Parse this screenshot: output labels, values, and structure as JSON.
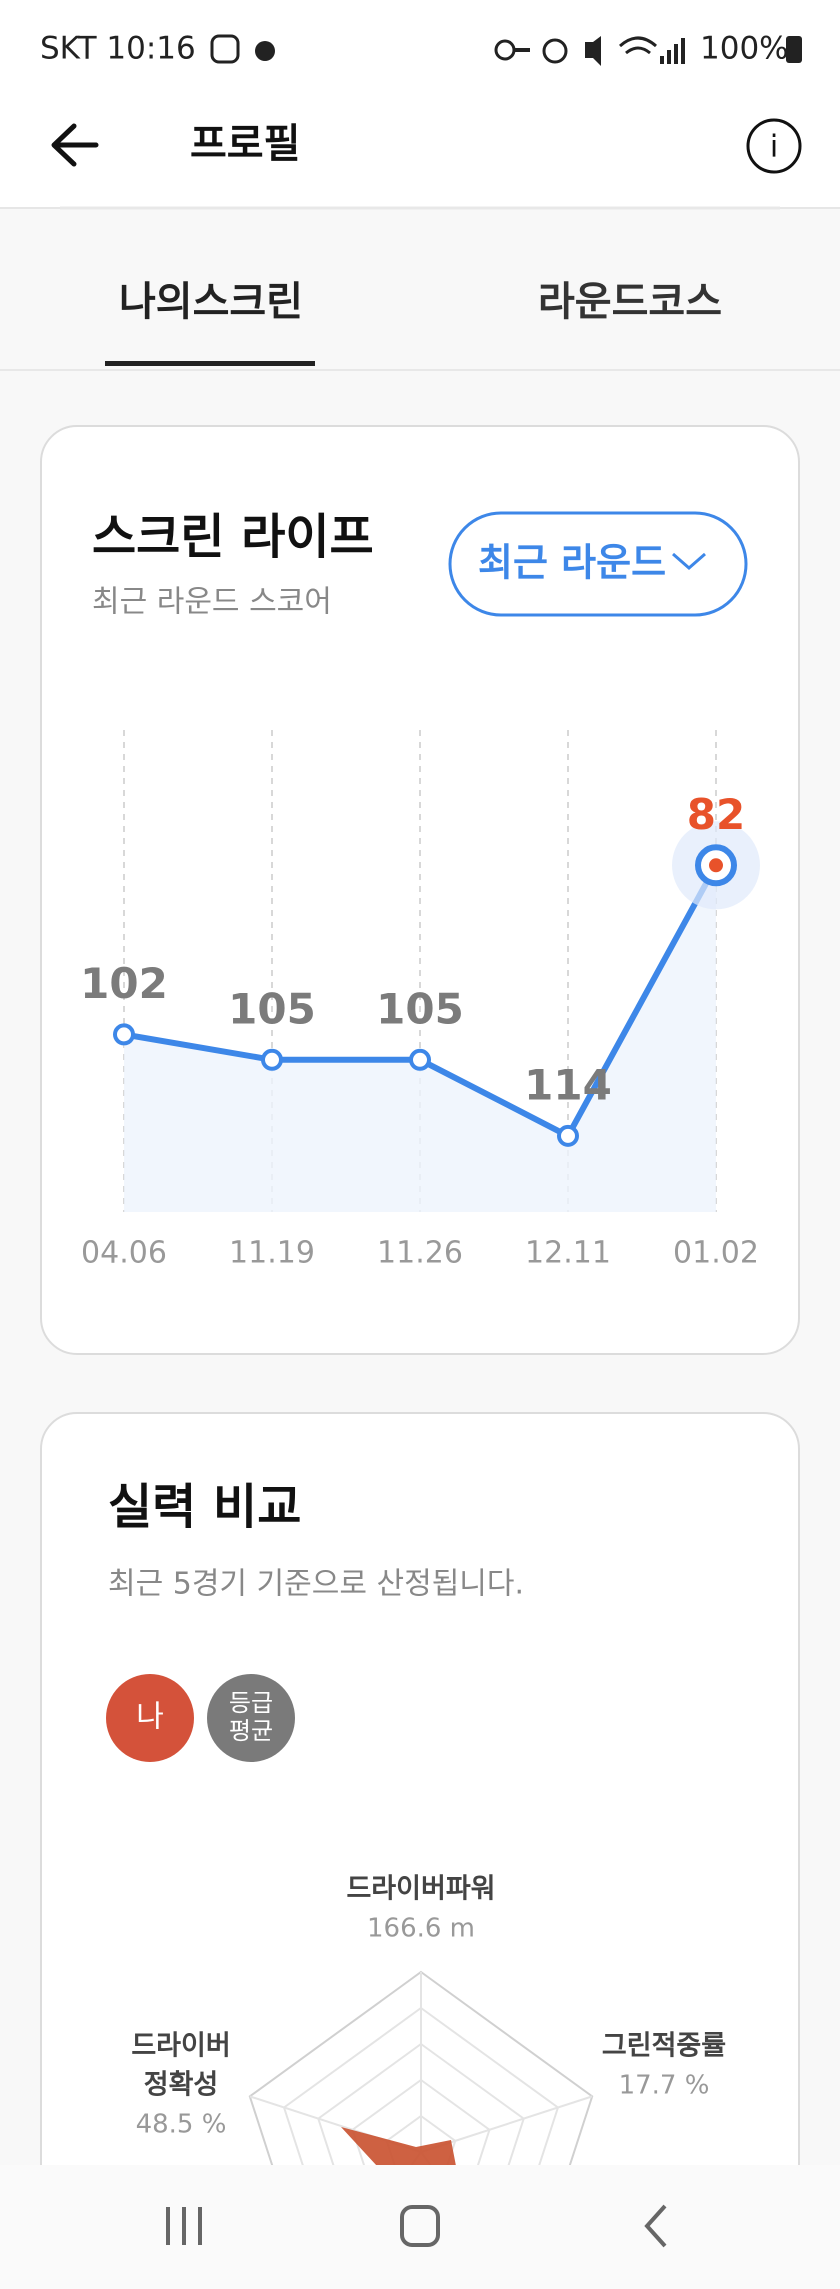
{
  "status_bar": {
    "carrier_time": "SKT 10:16",
    "battery": "100%"
  },
  "header": {
    "title": "프로필"
  },
  "tabs": [
    "나의스크린",
    "라운드코스"
  ],
  "dropdown_label": "최근 라운드",
  "chart_data": {
    "type": "line",
    "title": "스크린 라이프",
    "subtitle": "최근 라운드 스코어",
    "categories": [
      "04.06",
      "11.19",
      "11.26",
      "12.11",
      "01.02"
    ],
    "values": [
      102,
      105,
      105,
      114,
      82
    ],
    "color": "#3d87e8",
    "highlight_color": "#e8522a",
    "ylim": [
      123,
      66
    ],
    "grid": true
  },
  "comparison": {
    "title": "실력 비교",
    "subtitle": "최근 5경기 기준으로 산정됩니다.",
    "legend": [
      {
        "lines": [
          "나"
        ],
        "color": "#d4523a"
      },
      {
        "lines": [
          "등급",
          "평균"
        ],
        "color": "#7a7a7a"
      }
    ],
    "axes": [
      {
        "lines": [
          "드라이버파워"
        ],
        "value": "166.6 m"
      },
      {
        "lines": [
          "그린적중률"
        ],
        "value": "17.7 %"
      },
      {
        "lines": [
          "드라이버",
          "정확성"
        ],
        "value": "48.5 %"
      }
    ]
  }
}
